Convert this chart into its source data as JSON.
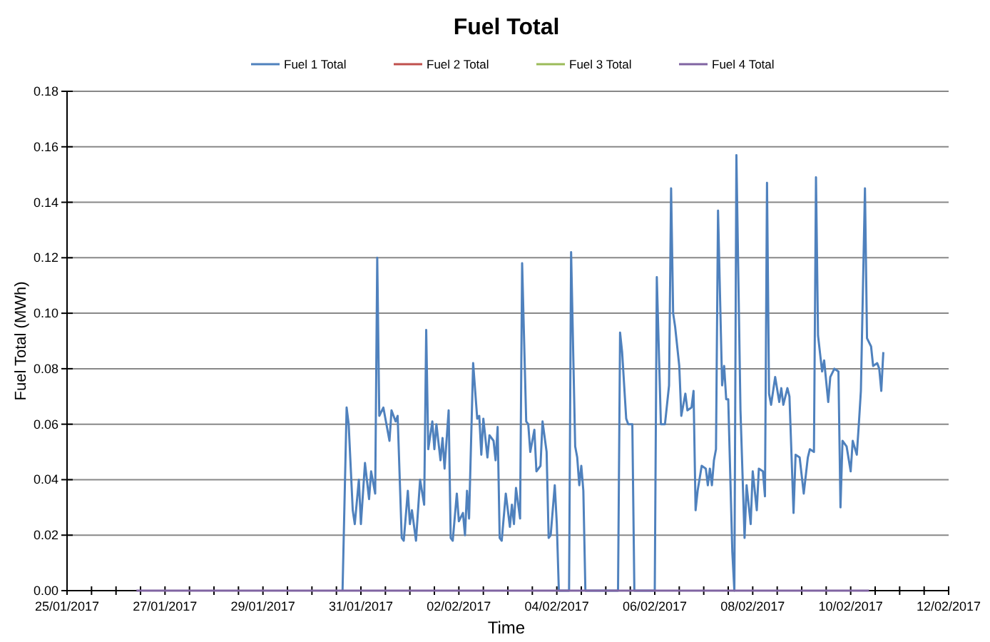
{
  "chart_data": {
    "type": "line",
    "title": "Fuel Total",
    "xlabel": "Time",
    "ylabel": "Fuel Total (MWh)",
    "legend": "top",
    "grid": "y",
    "marker": "none",
    "line_style": "solid",
    "xlim": [
      "2017-01-25",
      "2017-02-12"
    ],
    "xticks": [
      {
        "value": "2017-01-25",
        "label": "25/01/2017"
      },
      {
        "value": "2017-01-25T12:00",
        "label": null
      },
      {
        "value": "2017-01-26",
        "label": null
      },
      {
        "value": "2017-01-26T12:00",
        "label": null
      },
      {
        "value": "2017-01-27",
        "label": "27/01/2017"
      },
      {
        "value": "2017-01-27T12:00",
        "label": null
      },
      {
        "value": "2017-01-28",
        "label": null
      },
      {
        "value": "2017-01-28T12:00",
        "label": null
      },
      {
        "value": "2017-01-29",
        "label": "29/01/2017"
      },
      {
        "value": "2017-01-29T12:00",
        "label": null
      },
      {
        "value": "2017-01-30",
        "label": null
      },
      {
        "value": "2017-01-30T12:00",
        "label": null
      },
      {
        "value": "2017-01-31",
        "label": "31/01/2017"
      },
      {
        "value": "2017-01-31T12:00",
        "label": null
      },
      {
        "value": "2017-02-01",
        "label": null
      },
      {
        "value": "2017-02-01T12:00",
        "label": null
      },
      {
        "value": "2017-02-02",
        "label": "02/02/2017"
      },
      {
        "value": "2017-02-02T12:00",
        "label": null
      },
      {
        "value": "2017-02-03",
        "label": null
      },
      {
        "value": "2017-02-03T12:00",
        "label": null
      },
      {
        "value": "2017-02-04",
        "label": "04/02/2017"
      },
      {
        "value": "2017-02-04T12:00",
        "label": null
      },
      {
        "value": "2017-02-05",
        "label": null
      },
      {
        "value": "2017-02-05T12:00",
        "label": null
      },
      {
        "value": "2017-02-06",
        "label": "06/02/2017"
      },
      {
        "value": "2017-02-06T12:00",
        "label": null
      },
      {
        "value": "2017-02-07",
        "label": null
      },
      {
        "value": "2017-02-07T12:00",
        "label": null
      },
      {
        "value": "2017-02-08",
        "label": "08/02/2017"
      },
      {
        "value": "2017-02-08T12:00",
        "label": null
      },
      {
        "value": "2017-02-09",
        "label": null
      },
      {
        "value": "2017-02-09T12:00",
        "label": null
      },
      {
        "value": "2017-02-10",
        "label": "10/02/2017"
      },
      {
        "value": "2017-02-10T12:00",
        "label": null
      },
      {
        "value": "2017-02-11",
        "label": null
      },
      {
        "value": "2017-02-11T12:00",
        "label": null
      },
      {
        "value": "2017-02-12",
        "label": "12/02/2017"
      }
    ],
    "ylim": [
      0,
      0.18
    ],
    "yticks": [
      {
        "value": 0,
        "label": "0.00"
      },
      {
        "value": 0.02,
        "label": "0.02"
      },
      {
        "value": 0.04,
        "label": "0.04"
      },
      {
        "value": 0.06,
        "label": "0.06"
      },
      {
        "value": 0.08,
        "label": "0.08"
      },
      {
        "value": 0.1,
        "label": "0.10"
      },
      {
        "value": 0.12,
        "label": "0.12"
      },
      {
        "value": 0.14,
        "label": "0.14"
      },
      {
        "value": 0.16,
        "label": "0.16"
      },
      {
        "value": 0.18,
        "label": "0.18"
      }
    ],
    "series": [
      {
        "name": "Fuel 1 Total",
        "color": "#4f81bd",
        "x": [
          "2017-01-30T15:00",
          "2017-01-30T17:00",
          "2017-01-30T18:00",
          "2017-01-30T20:00",
          "2017-01-30T21:00",
          "2017-01-30T23:00",
          "2017-01-31T00:00",
          "2017-01-31T02:00",
          "2017-01-31T04:00",
          "2017-01-31T05:00",
          "2017-01-31T07:00",
          "2017-01-31T08:00",
          "2017-01-31T09:00",
          "2017-01-31T11:00",
          "2017-01-31T14:00",
          "2017-01-31T15:00",
          "2017-01-31T17:00",
          "2017-01-31T18:00",
          "2017-01-31T20:00",
          "2017-01-31T21:00",
          "2017-01-31T23:00",
          "2017-02-01T00:00",
          "2017-02-01T01:00",
          "2017-02-01T03:00",
          "2017-02-01T05:00",
          "2017-02-01T07:00",
          "2017-02-01T08:00",
          "2017-02-01T09:00",
          "2017-02-01T11:00",
          "2017-02-01T12:00",
          "2017-02-01T13:00",
          "2017-02-01T15:00",
          "2017-02-01T16:00",
          "2017-02-01T17:00",
          "2017-02-01T19:00",
          "2017-02-01T20:00",
          "2017-02-01T21:00",
          "2017-02-01T23:00",
          "2017-02-02T00:00",
          "2017-02-02T02:00",
          "2017-02-02T03:00",
          "2017-02-02T04:00",
          "2017-02-02T05:00",
          "2017-02-02T07:00",
          "2017-02-02T09:00",
          "2017-02-02T10:00",
          "2017-02-02T11:00",
          "2017-02-02T12:00",
          "2017-02-02T14:00",
          "2017-02-02T15:00",
          "2017-02-02T17:00",
          "2017-02-02T18:00",
          "2017-02-02T19:00",
          "2017-02-02T20:00",
          "2017-02-02T21:00",
          "2017-02-02T23:00",
          "2017-02-03T01:00",
          "2017-02-03T02:00",
          "2017-02-03T03:00",
          "2017-02-03T04:00",
          "2017-02-03T06:00",
          "2017-02-03T07:00",
          "2017-02-03T09:00",
          "2017-02-03T10:00",
          "2017-02-03T11:00",
          "2017-02-03T13:00",
          "2017-02-03T14:00",
          "2017-02-03T16:00",
          "2017-02-03T17:00",
          "2017-02-03T19:00",
          "2017-02-03T20:00",
          "2017-02-03T21:00",
          "2017-02-03T23:00",
          "2017-02-04T00:00",
          "2017-02-04T01:00",
          "2017-02-04T06:00",
          "2017-02-04T07:00",
          "2017-02-04T09:00",
          "2017-02-04T10:00",
          "2017-02-04T11:00",
          "2017-02-04T12:00",
          "2017-02-04T13:00",
          "2017-02-04T14:00",
          "2017-02-05T06:00",
          "2017-02-05T07:00",
          "2017-02-05T08:00",
          "2017-02-05T10:00",
          "2017-02-05T11:00",
          "2017-02-05T13:00",
          "2017-02-05T14:00",
          "2017-02-06T00:00",
          "2017-02-06T01:00",
          "2017-02-06T03:00",
          "2017-02-06T04:00",
          "2017-02-06T05:00",
          "2017-02-06T07:00",
          "2017-02-06T08:00",
          "2017-02-06T09:00",
          "2017-02-06T10:00",
          "2017-02-06T12:00",
          "2017-02-06T13:00",
          "2017-02-06T15:00",
          "2017-02-06T16:00",
          "2017-02-06T18:00",
          "2017-02-06T19:00",
          "2017-02-06T20:00",
          "2017-02-06T21:00",
          "2017-02-06T23:00",
          "2017-02-07T01:00",
          "2017-02-07T02:00",
          "2017-02-07T03:00",
          "2017-02-07T04:00",
          "2017-02-07T05:00",
          "2017-02-07T06:00",
          "2017-02-07T07:00",
          "2017-02-07T09:00",
          "2017-02-07T10:00",
          "2017-02-07T11:00",
          "2017-02-07T12:00",
          "2017-02-07T14:00",
          "2017-02-07T15:00",
          "2017-02-07T16:00",
          "2017-02-07T18:00",
          "2017-02-07T20:00",
          "2017-02-07T21:00",
          "2017-02-07T23:00",
          "2017-02-08T00:00",
          "2017-02-08T02:00",
          "2017-02-08T03:00",
          "2017-02-08T05:00",
          "2017-02-08T06:00",
          "2017-02-08T07:00",
          "2017-02-08T08:00",
          "2017-02-08T09:00",
          "2017-02-08T11:00",
          "2017-02-08T13:00",
          "2017-02-08T14:00",
          "2017-02-08T15:00",
          "2017-02-08T17:00",
          "2017-02-08T18:00",
          "2017-02-08T20:00",
          "2017-02-08T21:00",
          "2017-02-08T23:00",
          "2017-02-09T01:00",
          "2017-02-09T03:00",
          "2017-02-09T04:00",
          "2017-02-09T06:00",
          "2017-02-09T07:00",
          "2017-02-09T08:00",
          "2017-02-09T10:00",
          "2017-02-09T11:00",
          "2017-02-09T13:00",
          "2017-02-09T14:00",
          "2017-02-09T16:00",
          "2017-02-09T18:00",
          "2017-02-09T19:00",
          "2017-02-09T20:00",
          "2017-02-09T22:00",
          "2017-02-10T00:00",
          "2017-02-10T01:00",
          "2017-02-10T03:00",
          "2017-02-10T04:00",
          "2017-02-10T05:00",
          "2017-02-10T07:00",
          "2017-02-10T08:00",
          "2017-02-10T10:00",
          "2017-02-10T11:00",
          "2017-02-10T13:00",
          "2017-02-10T14:00",
          "2017-02-10T15:00",
          "2017-02-10T16:00"
        ],
        "values": [
          0,
          0.066,
          0.06,
          0.029,
          0.024,
          0.04,
          0.024,
          0.046,
          0.033,
          0.043,
          0.035,
          0.12,
          0.063,
          0.066,
          0.054,
          0.065,
          0.061,
          0.063,
          0.019,
          0.018,
          0.036,
          0.024,
          0.029,
          0.018,
          0.04,
          0.031,
          0.094,
          0.051,
          0.061,
          0.051,
          0.06,
          0.047,
          0.055,
          0.044,
          0.065,
          0.019,
          0.018,
          0.035,
          0.025,
          0.028,
          0.02,
          0.036,
          0.026,
          0.082,
          0.062,
          0.063,
          0.049,
          0.062,
          0.048,
          0.056,
          0.054,
          0.047,
          0.059,
          0.019,
          0.018,
          0.035,
          0.023,
          0.031,
          0.024,
          0.037,
          0.026,
          0.118,
          0.061,
          0.06,
          0.05,
          0.058,
          0.043,
          0.045,
          0.061,
          0.05,
          0.019,
          0.02,
          0.038,
          0.024,
          0,
          0,
          0.122,
          0.052,
          0.048,
          0.038,
          0.045,
          0.036,
          0,
          0,
          0.093,
          0.086,
          0.062,
          0.06,
          0.06,
          0,
          0,
          0.113,
          0.06,
          0.06,
          0.06,
          0.074,
          0.145,
          0.1,
          0.095,
          0.081,
          0.063,
          0.071,
          0.065,
          0.066,
          0.072,
          0.029,
          0.036,
          0.045,
          0.044,
          0.038,
          0.044,
          0.038,
          0.047,
          0.051,
          0.137,
          0.074,
          0.081,
          0.069,
          0.069,
          0.014,
          0,
          0.157,
          0.065,
          0.019,
          0.038,
          0.024,
          0.043,
          0.029,
          0.044,
          0.043,
          0.034,
          0.147,
          0.071,
          0.067,
          0.077,
          0.068,
          0.073,
          0.067,
          0.073,
          0.07,
          0.028,
          0.049,
          0.048,
          0.035,
          0.048,
          0.051,
          0.05,
          0.149,
          0.092,
          0.079,
          0.083,
          0.068,
          0.077,
          0.08,
          0.079,
          0.03,
          0.054,
          0.052,
          0.043,
          0.054,
          0.049,
          0.06,
          0.072,
          0.145,
          0.091,
          0.088,
          0.081,
          0.082,
          0.08,
          0.072,
          0.086
        ]
      },
      {
        "name": "Fuel 2 Total",
        "color": "#c0504d"
      },
      {
        "name": "Fuel 3 Total",
        "color": "#9bbb59"
      },
      {
        "name": "Fuel 4 Total",
        "color": "#8064a2",
        "x": [
          "2017-01-26T10:00",
          "2017-02-10T09:00"
        ],
        "values": [
          0,
          0
        ]
      }
    ]
  }
}
